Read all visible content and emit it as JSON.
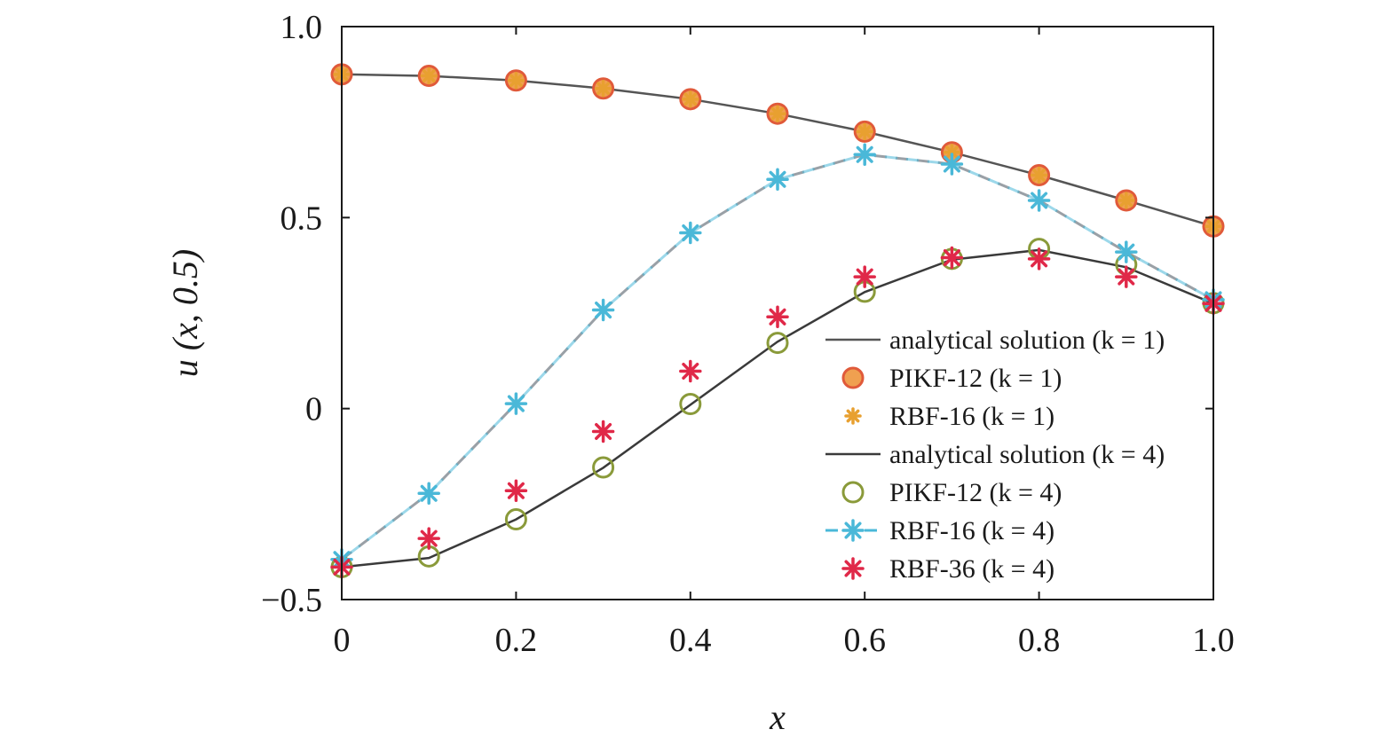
{
  "chart_data": {
    "type": "line",
    "title": "",
    "xlabel": "x",
    "ylabel": "u (x, 0.5)",
    "xlim": [
      0,
      1.0
    ],
    "ylim": [
      -0.5,
      1.0
    ],
    "x_ticks": [
      0,
      0.2,
      0.4,
      0.6,
      0.8,
      1.0
    ],
    "x_tick_labels": [
      "0",
      "0.2",
      "0.4",
      "0.6",
      "0.8",
      "1.0"
    ],
    "y_ticks": [
      -0.5,
      0,
      0.5,
      1.0
    ],
    "y_tick_labels": [
      "−0.5",
      "0",
      "0.5",
      "1.0"
    ],
    "grid": false,
    "legend_position": "lower-right",
    "x": [
      0,
      0.1,
      0.2,
      0.3,
      0.4,
      0.5,
      0.6,
      0.7,
      0.8,
      0.9,
      1.0
    ],
    "series": [
      {
        "name": "analytical solution (k = 1)",
        "style": "line",
        "color": "#555555",
        "values": [
          0.875,
          0.871,
          0.859,
          0.838,
          0.81,
          0.772,
          0.725,
          0.671,
          0.611,
          0.545,
          0.477
        ]
      },
      {
        "name": "PIKF-12 (k = 1)",
        "style": "circle-filled",
        "color": "#e05a3a",
        "fill": "#f0a050",
        "values": [
          0.875,
          0.871,
          0.859,
          0.838,
          0.81,
          0.772,
          0.725,
          0.671,
          0.611,
          0.545,
          0.477
        ]
      },
      {
        "name": "RBF-16 (k = 1)",
        "style": "star",
        "color": "#e8a030",
        "values": [
          0.875,
          0.871,
          0.859,
          0.838,
          0.81,
          0.772,
          0.725,
          0.671,
          0.611,
          0.545,
          0.477
        ]
      },
      {
        "name": "analytical solution (k = 4)",
        "style": "line",
        "color": "#3a3a3a",
        "values": [
          -0.415,
          -0.391,
          -0.29,
          -0.155,
          0.01,
          0.175,
          0.305,
          0.39,
          0.415,
          0.37,
          0.275
        ]
      },
      {
        "name": "PIKF-12 (k = 4)",
        "style": "circle-open",
        "color": "#8a9a3a",
        "values": [
          -0.415,
          -0.387,
          -0.29,
          -0.154,
          0.012,
          0.172,
          0.306,
          0.392,
          0.418,
          0.377,
          0.276
        ]
      },
      {
        "name": "RBF-16 (k = 4)",
        "style": "dashed-star",
        "color": "#4ab8d8",
        "values": [
          -0.395,
          -0.222,
          0.013,
          0.258,
          0.46,
          0.6,
          0.665,
          0.64,
          0.545,
          0.41,
          0.285
        ]
      },
      {
        "name": "RBF-36 (k = 4)",
        "style": "star",
        "color": "#e02848",
        "values": [
          -0.415,
          -0.34,
          -0.215,
          -0.06,
          0.098,
          0.24,
          0.345,
          0.395,
          0.392,
          0.345,
          0.275
        ]
      }
    ]
  }
}
